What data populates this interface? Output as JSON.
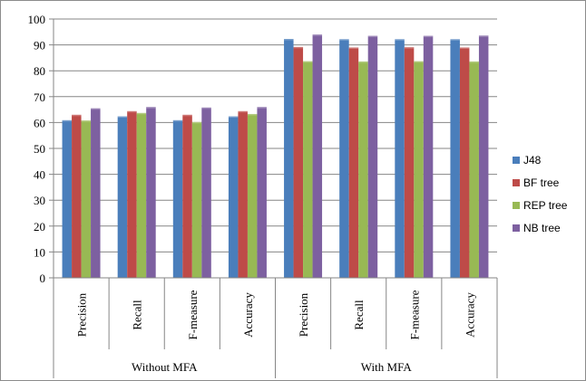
{
  "chart_data": {
    "type": "bar",
    "ylim": [
      0,
      100
    ],
    "yticks": [
      0,
      10,
      20,
      30,
      40,
      50,
      60,
      70,
      80,
      90,
      100
    ],
    "grid": true,
    "legend_position": "right",
    "categories": [
      "Precision",
      "Recall",
      "F-measure",
      "Accuracy",
      "Precision",
      "Recall",
      "F-measure",
      "Accuracy"
    ],
    "groups": [
      {
        "label": "Without MFA",
        "span": 4
      },
      {
        "label": "With MFA",
        "span": 4
      }
    ],
    "series": [
      {
        "name": "J48",
        "color": "#4a7ebb",
        "values": [
          60.9,
          62.4,
          60.9,
          62.4,
          92.3,
          92.2,
          92.2,
          92.2
        ]
      },
      {
        "name": "BF tree",
        "color": "#be4b48",
        "values": [
          63.0,
          64.4,
          63.0,
          64.4,
          89.2,
          89.0,
          89.1,
          89.0
        ]
      },
      {
        "name": "REP tree",
        "color": "#98b954",
        "values": [
          60.8,
          63.7,
          60.2,
          63.3,
          83.7,
          83.6,
          83.7,
          83.6
        ]
      },
      {
        "name": "NB tree",
        "color": "#7d60a0",
        "values": [
          65.5,
          66.0,
          65.8,
          66.0,
          94.0,
          93.5,
          93.5,
          93.6
        ]
      }
    ]
  }
}
